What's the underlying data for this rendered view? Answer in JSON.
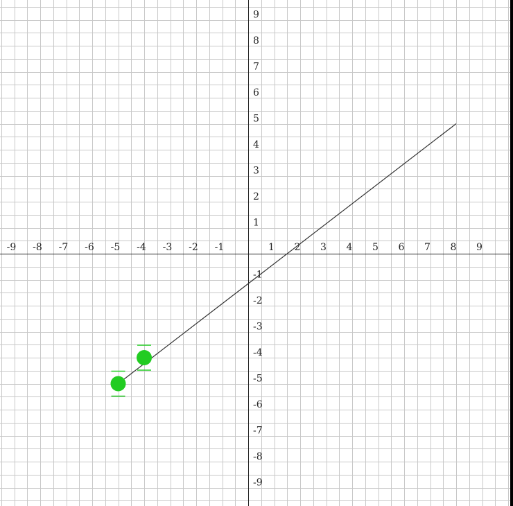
{
  "chart_data": {
    "type": "line",
    "xlim": [
      -9.5,
      10
    ],
    "ylim": [
      -9.7,
      9.7
    ],
    "grid": true,
    "x_ticks": [
      "-9",
      "-8",
      "-7",
      "-6",
      "-5",
      "-4",
      "-3",
      "-2",
      "-1",
      "1",
      "2",
      "3",
      "4",
      "5",
      "6",
      "7",
      "8",
      "9"
    ],
    "y_ticks": [
      "9",
      "8",
      "7",
      "6",
      "5",
      "4",
      "3",
      "2",
      "1",
      "-1",
      "-2",
      "-3",
      "-4",
      "-5",
      "-6",
      "-7",
      "-8",
      "-9"
    ],
    "line": {
      "x": [
        -5,
        8
      ],
      "y": [
        -5,
        5
      ],
      "color": "#333333"
    },
    "points": [
      {
        "x": -5,
        "y": -5
      },
      {
        "x": -4,
        "y": -4
      }
    ],
    "point_color": "#22cc22"
  }
}
